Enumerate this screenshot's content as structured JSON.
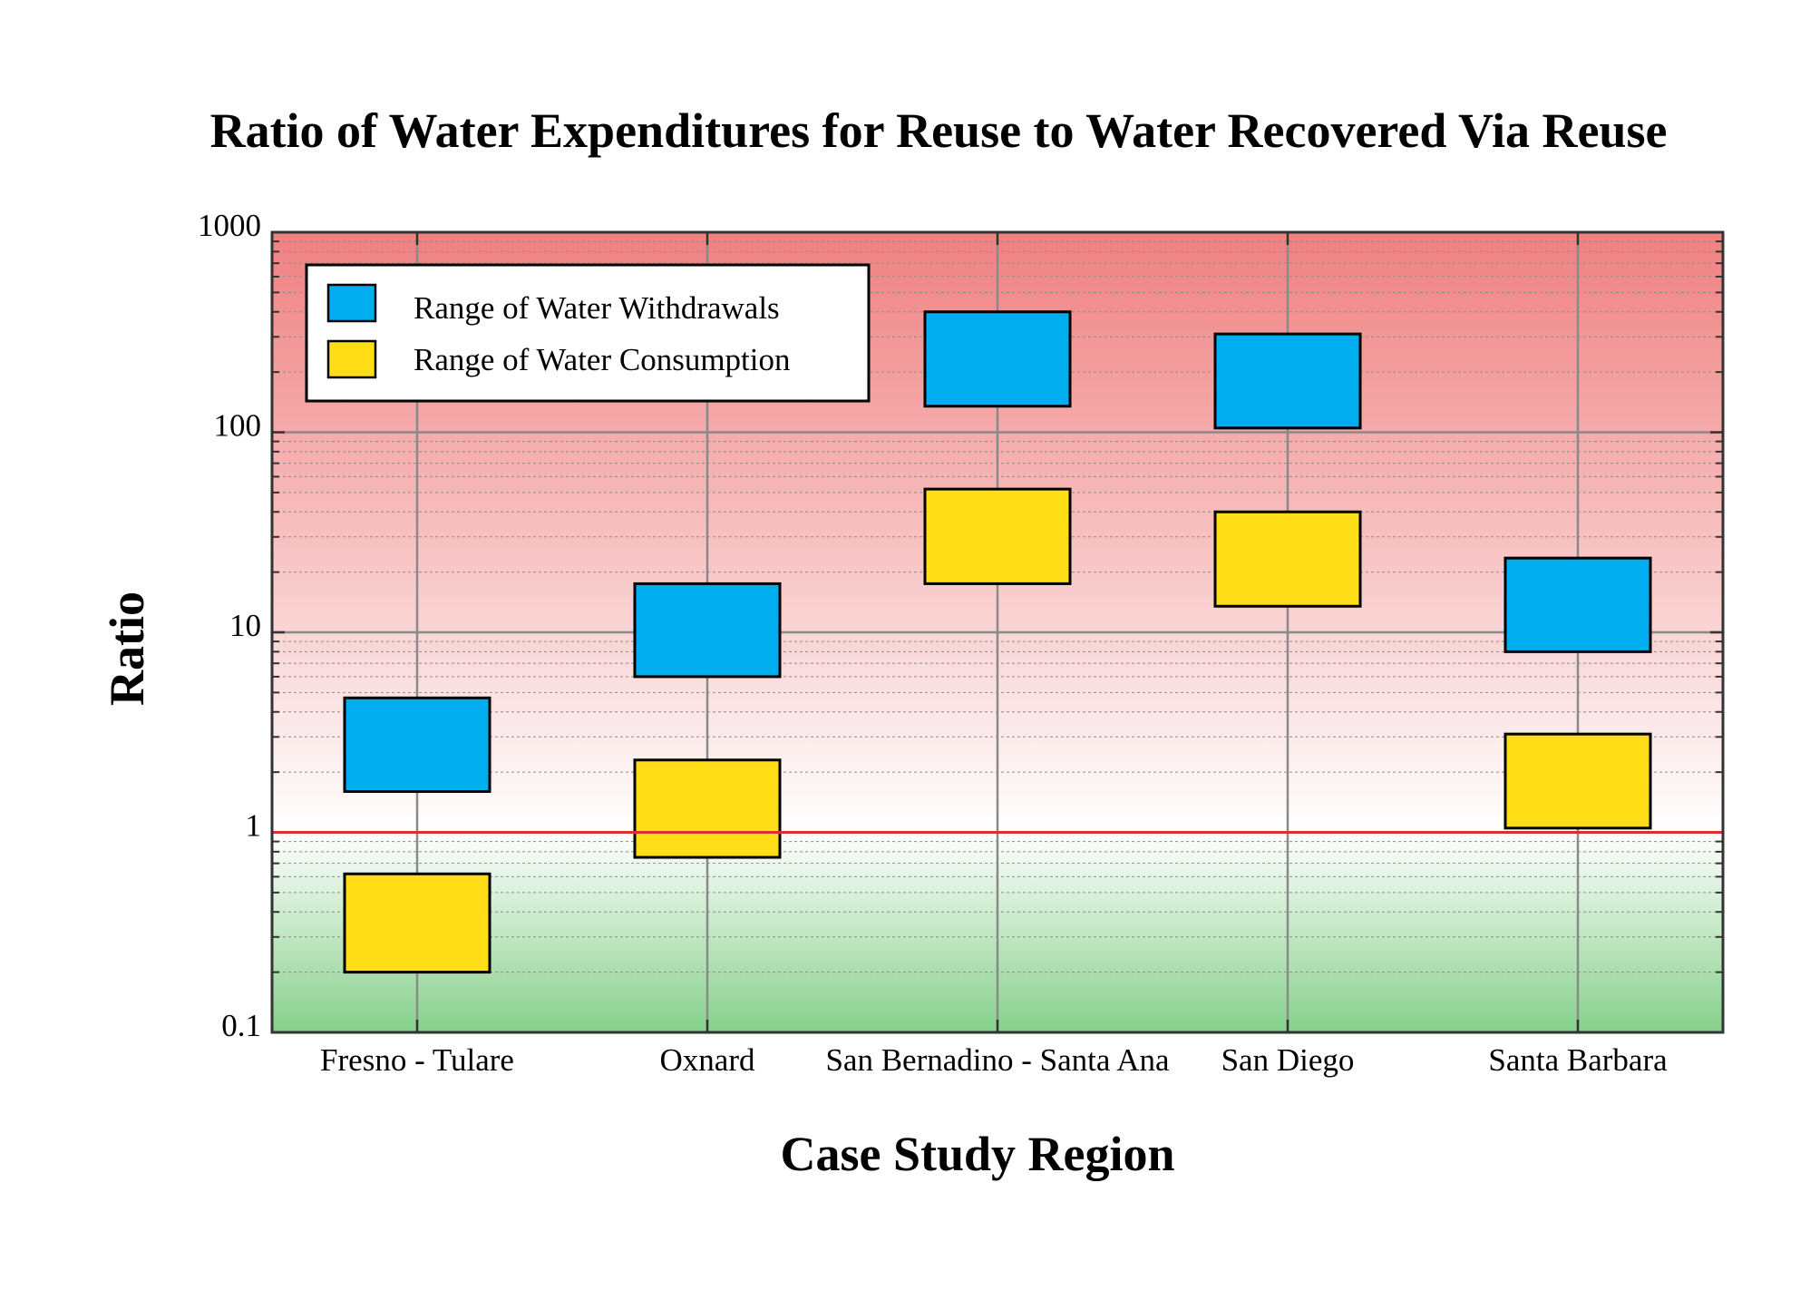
{
  "chart_data": {
    "type": "bar",
    "title": "Ratio of Water Expenditures for Reuse to Water Recovered Via Reuse",
    "xlabel": "Case Study Region",
    "ylabel": "Ratio",
    "y_scale": "log",
    "ylim": [
      0.1,
      1000
    ],
    "y_ticks": [
      "0.1",
      "1",
      "10",
      "100",
      "1000"
    ],
    "reference_line": {
      "y": 1,
      "color": "#d93030"
    },
    "background_gradient": {
      "top": "#f08080",
      "middle": "#ffffff",
      "bottom": "#86d08a"
    },
    "categories": [
      "Fresno - Tulare",
      "Oxnard",
      "San Bernadino - Santa Ana",
      "San Diego",
      "Santa Barbara"
    ],
    "series": [
      {
        "name": "Range of Water Withdrawals",
        "color": "#00aeef",
        "ranges": [
          [
            1.6,
            4.7
          ],
          [
            6.0,
            17.5
          ],
          [
            135,
            400
          ],
          [
            105,
            310
          ],
          [
            8.0,
            23.5
          ]
        ]
      },
      {
        "name": "Range of Water Consumption",
        "color": "#ffdd17",
        "ranges": [
          [
            0.2,
            0.62
          ],
          [
            0.75,
            2.3
          ],
          [
            17.5,
            52
          ],
          [
            13.5,
            40
          ],
          [
            1.05,
            3.1
          ]
        ]
      }
    ],
    "grid": true,
    "legend_position": "top-left"
  }
}
